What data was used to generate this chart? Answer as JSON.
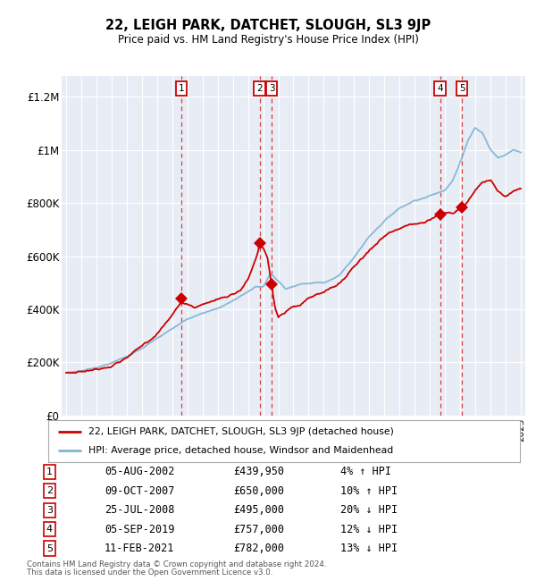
{
  "title": "22, LEIGH PARK, DATCHET, SLOUGH, SL3 9JP",
  "subtitle": "Price paid vs. HM Land Registry's House Price Index (HPI)",
  "legend_property": "22, LEIGH PARK, DATCHET, SLOUGH, SL3 9JP (detached house)",
  "legend_hpi": "HPI: Average price, detached house, Windsor and Maidenhead",
  "footer1": "Contains HM Land Registry data © Crown copyright and database right 2024.",
  "footer2": "This data is licensed under the Open Government Licence v3.0.",
  "xlim_start": 1994.7,
  "xlim_end": 2025.3,
  "ylim_min": 0,
  "ylim_max": 1280000,
  "yticks": [
    0,
    200000,
    400000,
    600000,
    800000,
    1000000,
    1200000
  ],
  "ytick_labels": [
    "£0",
    "£200K",
    "£400K",
    "£600K",
    "£800K",
    "£1M",
    "£1.2M"
  ],
  "sales": [
    {
      "num": 1,
      "date_label": "05-AUG-2002",
      "price_label": "£439,950",
      "pct_label": "4% ↑ HPI",
      "year": 2002.59,
      "price": 439950
    },
    {
      "num": 2,
      "date_label": "09-OCT-2007",
      "price_label": "£650,000",
      "pct_label": "10% ↑ HPI",
      "year": 2007.77,
      "price": 650000
    },
    {
      "num": 3,
      "date_label": "25-JUL-2008",
      "price_label": "£495,000",
      "pct_label": "20% ↓ HPI",
      "year": 2008.56,
      "price": 495000
    },
    {
      "num": 4,
      "date_label": "05-SEP-2019",
      "price_label": "£757,000",
      "pct_label": "12% ↓ HPI",
      "year": 2019.68,
      "price": 757000
    },
    {
      "num": 5,
      "date_label": "11-FEB-2021",
      "price_label": "£782,000",
      "pct_label": "13% ↓ HPI",
      "year": 2021.12,
      "price": 782000
    }
  ],
  "property_color": "#cc0000",
  "hpi_color": "#7fb3d3",
  "dashed_color": "#cc2222",
  "background_plot": "#e8edf5",
  "grid_color": "#ffffff",
  "hpi_anchors": [
    [
      1995.0,
      160000
    ],
    [
      1996.0,
      168000
    ],
    [
      1997.0,
      182000
    ],
    [
      1998.0,
      200000
    ],
    [
      1999.0,
      225000
    ],
    [
      2000.0,
      255000
    ],
    [
      2001.0,
      290000
    ],
    [
      2002.0,
      325000
    ],
    [
      2003.0,
      360000
    ],
    [
      2004.0,
      390000
    ],
    [
      2005.0,
      405000
    ],
    [
      2006.0,
      435000
    ],
    [
      2007.0,
      470000
    ],
    [
      2007.5,
      490000
    ],
    [
      2008.0,
      490000
    ],
    [
      2008.5,
      540000
    ],
    [
      2009.0,
      510000
    ],
    [
      2009.5,
      480000
    ],
    [
      2010.0,
      490000
    ],
    [
      2010.5,
      500000
    ],
    [
      2011.0,
      500000
    ],
    [
      2012.0,
      505000
    ],
    [
      2013.0,
      530000
    ],
    [
      2014.0,
      600000
    ],
    [
      2015.0,
      680000
    ],
    [
      2016.0,
      740000
    ],
    [
      2017.0,
      790000
    ],
    [
      2018.0,
      820000
    ],
    [
      2019.0,
      840000
    ],
    [
      2019.5,
      850000
    ],
    [
      2020.0,
      860000
    ],
    [
      2020.5,
      900000
    ],
    [
      2021.0,
      970000
    ],
    [
      2021.5,
      1050000
    ],
    [
      2022.0,
      1100000
    ],
    [
      2022.5,
      1080000
    ],
    [
      2023.0,
      1020000
    ],
    [
      2023.5,
      990000
    ],
    [
      2024.0,
      1000000
    ],
    [
      2024.5,
      1020000
    ],
    [
      2025.0,
      1010000
    ]
  ],
  "prop_anchors": [
    [
      1995.0,
      158000
    ],
    [
      1996.0,
      166000
    ],
    [
      1997.0,
      178000
    ],
    [
      1998.0,
      200000
    ],
    [
      1999.0,
      230000
    ],
    [
      2000.0,
      270000
    ],
    [
      2001.0,
      320000
    ],
    [
      2002.0,
      390000
    ],
    [
      2002.59,
      439950
    ],
    [
      2003.0,
      430000
    ],
    [
      2003.5,
      420000
    ],
    [
      2004.0,
      430000
    ],
    [
      2004.5,
      440000
    ],
    [
      2005.0,
      450000
    ],
    [
      2005.5,
      460000
    ],
    [
      2006.0,
      470000
    ],
    [
      2006.5,
      490000
    ],
    [
      2007.0,
      530000
    ],
    [
      2007.5,
      600000
    ],
    [
      2007.77,
      650000
    ],
    [
      2008.0,
      640000
    ],
    [
      2008.3,
      600000
    ],
    [
      2008.56,
      495000
    ],
    [
      2008.8,
      410000
    ],
    [
      2009.0,
      375000
    ],
    [
      2009.3,
      385000
    ],
    [
      2009.6,
      395000
    ],
    [
      2009.9,
      400000
    ],
    [
      2010.0,
      400000
    ],
    [
      2010.5,
      410000
    ],
    [
      2011.0,
      430000
    ],
    [
      2011.5,
      440000
    ],
    [
      2012.0,
      450000
    ],
    [
      2012.5,
      460000
    ],
    [
      2013.0,
      480000
    ],
    [
      2013.5,
      510000
    ],
    [
      2014.0,
      550000
    ],
    [
      2014.5,
      580000
    ],
    [
      2015.0,
      610000
    ],
    [
      2015.5,
      640000
    ],
    [
      2016.0,
      670000
    ],
    [
      2016.5,
      690000
    ],
    [
      2017.0,
      700000
    ],
    [
      2017.5,
      710000
    ],
    [
      2018.0,
      720000
    ],
    [
      2018.5,
      730000
    ],
    [
      2019.0,
      740000
    ],
    [
      2019.68,
      757000
    ],
    [
      2020.0,
      760000
    ],
    [
      2020.5,
      760000
    ],
    [
      2021.12,
      782000
    ],
    [
      2021.5,
      800000
    ],
    [
      2022.0,
      840000
    ],
    [
      2022.5,
      870000
    ],
    [
      2023.0,
      880000
    ],
    [
      2023.5,
      840000
    ],
    [
      2024.0,
      820000
    ],
    [
      2024.5,
      840000
    ],
    [
      2025.0,
      850000
    ]
  ]
}
